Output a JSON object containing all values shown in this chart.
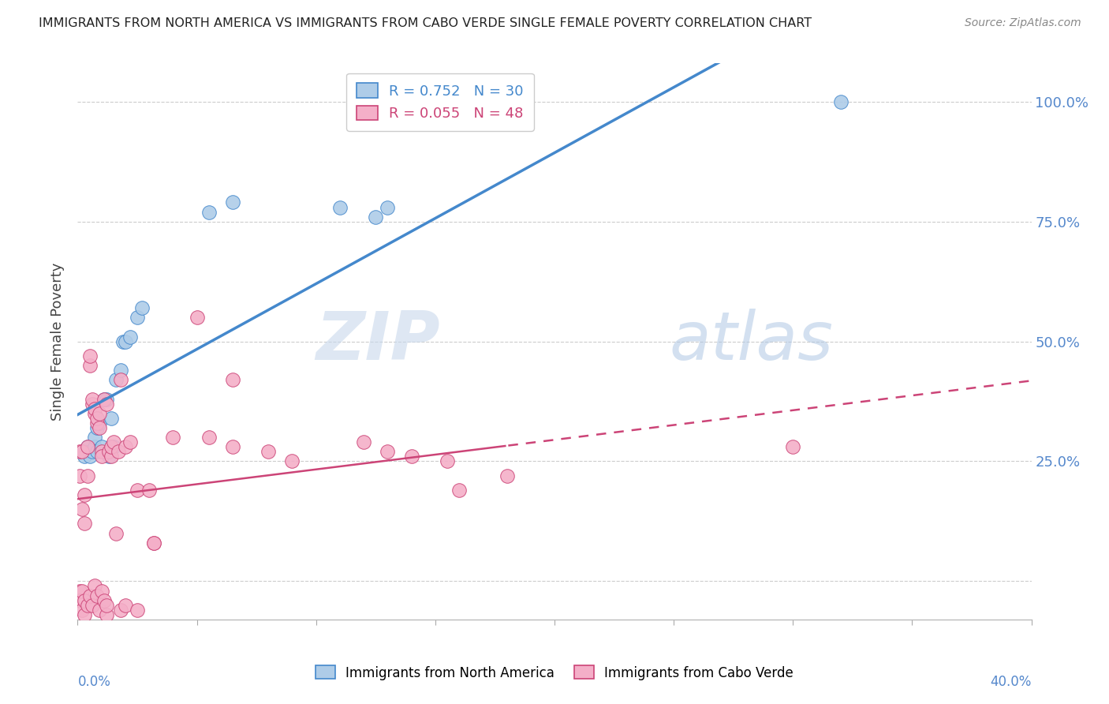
{
  "title": "IMMIGRANTS FROM NORTH AMERICA VS IMMIGRANTS FROM CABO VERDE SINGLE FEMALE POVERTY CORRELATION CHART",
  "source": "Source: ZipAtlas.com",
  "ylabel": "Single Female Poverty",
  "y_ticks": [
    0.0,
    0.25,
    0.5,
    0.75,
    1.0
  ],
  "y_tick_labels": [
    "",
    "25.0%",
    "50.0%",
    "75.0%",
    "100.0%"
  ],
  "xlim": [
    0.0,
    0.4
  ],
  "ylim": [
    -0.08,
    1.08
  ],
  "blue_R": 0.752,
  "blue_N": 30,
  "pink_R": 0.055,
  "pink_N": 48,
  "blue_color": "#aecce8",
  "pink_color": "#f4afc8",
  "blue_line_color": "#4488cc",
  "pink_line_color": "#cc4477",
  "legend_blue_label": "Immigrants from North America",
  "legend_pink_label": "Immigrants from Cabo Verde",
  "watermark_zip": "ZIP",
  "watermark_atlas": "atlas",
  "blue_scatter_x": [
    0.003,
    0.003,
    0.004,
    0.005,
    0.005,
    0.006,
    0.007,
    0.007,
    0.008,
    0.008,
    0.009,
    0.01,
    0.011,
    0.012,
    0.013,
    0.014,
    0.015,
    0.016,
    0.018,
    0.019,
    0.02,
    0.022,
    0.025,
    0.027,
    0.055,
    0.065,
    0.11,
    0.125,
    0.13,
    0.32
  ],
  "blue_scatter_y": [
    0.27,
    0.26,
    0.28,
    0.27,
    0.26,
    0.27,
    0.28,
    0.3,
    0.27,
    0.32,
    0.33,
    0.28,
    0.38,
    0.38,
    0.26,
    0.34,
    0.28,
    0.42,
    0.44,
    0.5,
    0.5,
    0.51,
    0.55,
    0.57,
    0.77,
    0.79,
    0.78,
    0.76,
    0.78,
    1.0
  ],
  "pink_scatter_x": [
    0.001,
    0.001,
    0.002,
    0.002,
    0.003,
    0.003,
    0.004,
    0.004,
    0.005,
    0.005,
    0.006,
    0.006,
    0.007,
    0.007,
    0.008,
    0.008,
    0.009,
    0.009,
    0.01,
    0.01,
    0.011,
    0.012,
    0.013,
    0.014,
    0.014,
    0.015,
    0.016,
    0.017,
    0.018,
    0.02,
    0.022,
    0.025,
    0.03,
    0.032,
    0.04,
    0.05,
    0.055,
    0.065,
    0.065,
    0.08,
    0.09,
    0.12,
    0.13,
    0.14,
    0.155,
    0.16,
    0.18,
    0.3
  ],
  "pink_scatter_y": [
    0.27,
    0.22,
    0.27,
    0.15,
    0.18,
    0.12,
    0.28,
    0.22,
    0.45,
    0.47,
    0.37,
    0.38,
    0.35,
    0.36,
    0.33,
    0.34,
    0.35,
    0.32,
    0.27,
    0.26,
    0.38,
    0.37,
    0.27,
    0.26,
    0.28,
    0.29,
    0.1,
    0.27,
    0.42,
    0.28,
    0.29,
    0.19,
    0.19,
    0.08,
    0.3,
    0.55,
    0.3,
    0.28,
    0.42,
    0.27,
    0.25,
    0.29,
    0.27,
    0.26,
    0.25,
    0.19,
    0.22,
    0.28
  ],
  "pink_low_scatter_x": [
    0.001,
    0.001,
    0.002,
    0.002,
    0.003,
    0.003,
    0.004,
    0.005,
    0.006,
    0.007,
    0.008,
    0.009,
    0.01,
    0.011,
    0.012,
    0.012,
    0.018,
    0.02,
    0.025,
    0.032
  ],
  "pink_low_scatter_y": [
    -0.02,
    -0.04,
    -0.06,
    -0.02,
    -0.04,
    -0.07,
    -0.05,
    -0.03,
    -0.05,
    -0.01,
    -0.03,
    -0.06,
    -0.02,
    -0.04,
    -0.07,
    -0.05,
    -0.06,
    -0.05,
    -0.06,
    0.08
  ]
}
